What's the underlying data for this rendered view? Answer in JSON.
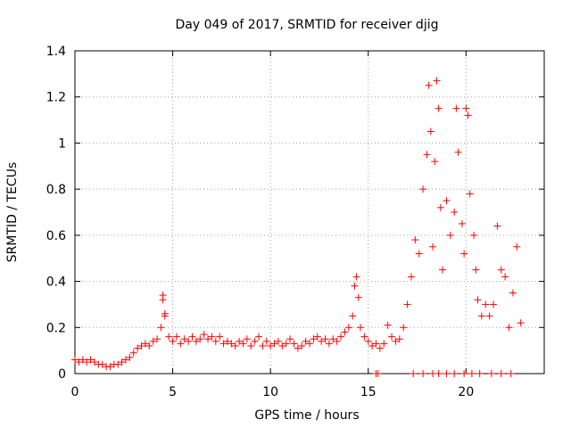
{
  "chart_data": {
    "type": "scatter",
    "title": "Day 049 of 2017, SRMTID for receiver djig",
    "xlabel": "GPS time / hours",
    "ylabel": "SRMTID / TECUs",
    "xlim": [
      0,
      24
    ],
    "ylim": [
      0,
      1.4
    ],
    "xticks": [
      0,
      5,
      10,
      15,
      20
    ],
    "xtick_labels": [
      "0",
      "5",
      "10",
      "15",
      "20"
    ],
    "yticks": [
      0,
      0.2,
      0.4,
      0.6,
      0.8,
      1.0,
      1.2,
      1.4
    ],
    "ytick_labels": [
      "0",
      "0.2",
      "0.4",
      "0.6",
      "0.8",
      "1",
      "1.2",
      "1.4"
    ],
    "grid": true,
    "marker": "+",
    "marker_color": "#ff0000",
    "series": [
      {
        "name": "SRMTID",
        "points": [
          [
            0.0,
            0.06
          ],
          [
            0.2,
            0.05
          ],
          [
            0.4,
            0.06
          ],
          [
            0.6,
            0.05
          ],
          [
            0.8,
            0.06
          ],
          [
            1.0,
            0.05
          ],
          [
            1.2,
            0.04
          ],
          [
            1.4,
            0.04
          ],
          [
            1.6,
            0.03
          ],
          [
            1.8,
            0.03
          ],
          [
            2.0,
            0.04
          ],
          [
            2.2,
            0.04
          ],
          [
            2.4,
            0.05
          ],
          [
            2.6,
            0.06
          ],
          [
            2.8,
            0.07
          ],
          [
            3.0,
            0.09
          ],
          [
            3.2,
            0.11
          ],
          [
            3.4,
            0.12
          ],
          [
            3.6,
            0.13
          ],
          [
            3.8,
            0.12
          ],
          [
            4.0,
            0.14
          ],
          [
            4.2,
            0.15
          ],
          [
            4.4,
            0.2
          ],
          [
            4.5,
            0.34
          ],
          [
            4.5,
            0.32
          ],
          [
            4.6,
            0.26
          ],
          [
            4.6,
            0.25
          ],
          [
            4.8,
            0.16
          ],
          [
            5.0,
            0.14
          ],
          [
            5.2,
            0.16
          ],
          [
            5.4,
            0.13
          ],
          [
            5.6,
            0.15
          ],
          [
            5.8,
            0.14
          ],
          [
            6.0,
            0.16
          ],
          [
            6.2,
            0.14
          ],
          [
            6.4,
            0.15
          ],
          [
            6.6,
            0.17
          ],
          [
            6.8,
            0.15
          ],
          [
            7.0,
            0.16
          ],
          [
            7.2,
            0.14
          ],
          [
            7.4,
            0.16
          ],
          [
            7.6,
            0.13
          ],
          [
            7.8,
            0.14
          ],
          [
            8.0,
            0.13
          ],
          [
            8.2,
            0.12
          ],
          [
            8.4,
            0.14
          ],
          [
            8.6,
            0.13
          ],
          [
            8.8,
            0.15
          ],
          [
            9.0,
            0.12
          ],
          [
            9.2,
            0.14
          ],
          [
            9.4,
            0.16
          ],
          [
            9.6,
            0.12
          ],
          [
            9.8,
            0.14
          ],
          [
            10.0,
            0.12
          ],
          [
            10.2,
            0.13
          ],
          [
            10.4,
            0.14
          ],
          [
            10.6,
            0.12
          ],
          [
            10.8,
            0.13
          ],
          [
            11.0,
            0.15
          ],
          [
            11.2,
            0.13
          ],
          [
            11.4,
            0.11
          ],
          [
            11.6,
            0.12
          ],
          [
            11.8,
            0.14
          ],
          [
            12.0,
            0.13
          ],
          [
            12.2,
            0.15
          ],
          [
            12.4,
            0.16
          ],
          [
            12.6,
            0.14
          ],
          [
            12.8,
            0.15
          ],
          [
            13.0,
            0.13
          ],
          [
            13.2,
            0.15
          ],
          [
            13.4,
            0.14
          ],
          [
            13.6,
            0.16
          ],
          [
            13.8,
            0.18
          ],
          [
            14.0,
            0.2
          ],
          [
            14.2,
            0.25
          ],
          [
            14.3,
            0.38
          ],
          [
            14.4,
            0.42
          ],
          [
            14.5,
            0.33
          ],
          [
            14.6,
            0.2
          ],
          [
            14.8,
            0.16
          ],
          [
            15.0,
            0.14
          ],
          [
            15.2,
            0.12
          ],
          [
            15.4,
            0.13
          ],
          [
            15.6,
            0.11
          ],
          [
            15.8,
            0.13
          ],
          [
            16.0,
            0.21
          ],
          [
            16.2,
            0.16
          ],
          [
            16.4,
            0.14
          ],
          [
            16.6,
            0.15
          ],
          [
            16.8,
            0.2
          ],
          [
            17.0,
            0.3
          ],
          [
            17.2,
            0.42
          ],
          [
            17.4,
            0.58
          ],
          [
            17.6,
            0.52
          ],
          [
            17.8,
            0.8
          ],
          [
            18.0,
            0.95
          ],
          [
            18.1,
            1.25
          ],
          [
            18.2,
            1.05
          ],
          [
            18.3,
            0.55
          ],
          [
            18.4,
            0.92
          ],
          [
            18.5,
            1.27
          ],
          [
            18.6,
            1.15
          ],
          [
            18.7,
            0.72
          ],
          [
            18.8,
            0.45
          ],
          [
            19.0,
            0.75
          ],
          [
            19.2,
            0.6
          ],
          [
            19.4,
            0.7
          ],
          [
            19.5,
            1.15
          ],
          [
            19.6,
            0.96
          ],
          [
            19.8,
            0.65
          ],
          [
            19.9,
            0.52
          ],
          [
            20.0,
            1.15
          ],
          [
            20.1,
            1.12
          ],
          [
            20.2,
            0.78
          ],
          [
            20.4,
            0.6
          ],
          [
            20.5,
            0.45
          ],
          [
            20.6,
            0.32
          ],
          [
            20.8,
            0.25
          ],
          [
            21.0,
            0.3
          ],
          [
            21.2,
            0.25
          ],
          [
            21.4,
            0.3
          ],
          [
            21.6,
            0.64
          ],
          [
            21.8,
            0.45
          ],
          [
            22.0,
            0.42
          ],
          [
            22.2,
            0.2
          ],
          [
            22.4,
            0.35
          ],
          [
            22.6,
            0.55
          ],
          [
            22.8,
            0.22
          ],
          [
            15.4,
            0.0
          ],
          [
            15.5,
            0.0
          ],
          [
            17.3,
            0.0
          ],
          [
            17.8,
            0.0
          ],
          [
            18.3,
            0.0
          ],
          [
            18.6,
            0.0
          ],
          [
            19.0,
            0.0
          ],
          [
            19.4,
            0.0
          ],
          [
            19.9,
            0.0
          ],
          [
            20.3,
            0.0
          ],
          [
            20.7,
            0.0
          ],
          [
            21.3,
            0.0
          ],
          [
            21.8,
            0.0
          ],
          [
            22.3,
            0.0
          ]
        ]
      }
    ]
  }
}
